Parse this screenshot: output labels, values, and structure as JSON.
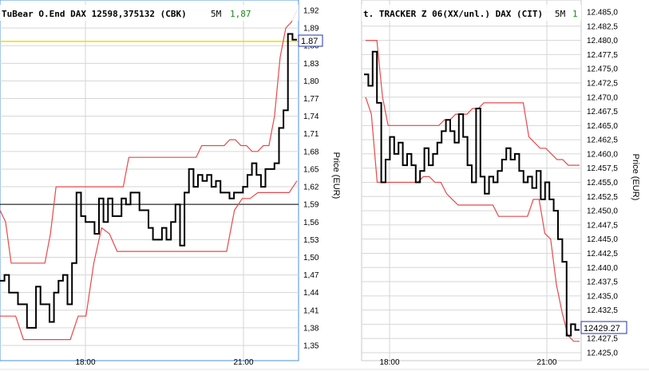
{
  "colors": {
    "price": "#000000",
    "band": "#e8484a",
    "grid": "#d6d6d6",
    "frame": "#4a90d9",
    "highlight": "#e8e000",
    "value_green": "#1a8a1a",
    "lastbox": "#2233aa"
  },
  "chart_data": [
    {
      "type": "line",
      "title": "TuBear O.End DAX 12598,375132 (CBK)",
      "timeframe": "5M",
      "current_value": "1,87",
      "ylabel": "Price (EUR)",
      "xlabel": "",
      "ylim": [
        1.34,
        1.92
      ],
      "ytick_labels": [
        "1,92",
        "1,89",
        "1,86",
        "1,83",
        "1,80",
        "1,77",
        "1,74",
        "1,71",
        "1,68",
        "1,65",
        "1,62",
        "1,59",
        "1,56",
        "1,53",
        "1,50",
        "1,47",
        "1,44",
        "1,41",
        "1,38",
        "1,35"
      ],
      "xtick_labels": [
        "18:00",
        "21:00"
      ],
      "last_value_label": "1.87",
      "horizontal_lines": {
        "yellow": 1.87,
        "black": 1.59
      },
      "series": [
        {
          "values": [
            1.46,
            1.47,
            1.44,
            1.44,
            1.42,
            1.42,
            1.38,
            1.38,
            1.45,
            1.42,
            1.42,
            1.39,
            1.44,
            1.46,
            1.47,
            1.42,
            1.49,
            1.61,
            1.57,
            1.56,
            1.56,
            1.54,
            1.6,
            1.56,
            1.6,
            1.57,
            1.57,
            1.6,
            1.59,
            1.61,
            1.61,
            1.58,
            1.58,
            1.55,
            1.53,
            1.53,
            1.55,
            1.53,
            1.56,
            1.59,
            1.52,
            1.61,
            1.65,
            1.62,
            1.64,
            1.63,
            1.64,
            1.62,
            1.63,
            1.61,
            1.61,
            1.6,
            1.61,
            1.61,
            1.62,
            1.64,
            1.66,
            1.64,
            1.62,
            1.65,
            1.65,
            1.66,
            1.72,
            1.75,
            1.88,
            1.87
          ]
        },
        {
          "values": [
            1.58,
            1.56,
            1.49,
            1.49,
            1.49,
            1.49,
            1.49,
            1.49,
            1.49,
            1.54,
            1.62,
            1.62,
            1.62,
            1.62,
            1.62,
            1.62,
            1.62,
            1.62,
            1.62,
            1.62,
            1.62,
            1.62,
            1.62,
            1.67,
            1.67,
            1.67,
            1.67,
            1.67,
            1.67,
            1.67,
            1.67,
            1.67,
            1.67,
            1.67,
            1.67,
            1.67,
            1.69,
            1.69,
            1.69,
            1.69,
            1.69,
            1.7,
            1.7,
            1.69,
            1.69,
            1.68,
            1.68,
            1.69,
            1.69,
            1.74,
            1.84,
            1.89,
            1.9,
            1.92
          ]
        },
        {
          "values": [
            1.4,
            1.4,
            1.4,
            1.36,
            1.36,
            1.36,
            1.36,
            1.36,
            1.36,
            1.36,
            1.4,
            1.4,
            1.49,
            1.55,
            1.54,
            1.51,
            1.51,
            1.51,
            1.51,
            1.51,
            1.51,
            1.51,
            1.51,
            1.51,
            1.51,
            1.51,
            1.51,
            1.51,
            1.51,
            1.51,
            1.58,
            1.6,
            1.6,
            1.61,
            1.61,
            1.61,
            1.61,
            1.61,
            1.63
          ]
        }
      ]
    },
    {
      "type": "line",
      "title": "t. TRACKER Z 06(XX/unl.) DAX (CIT)",
      "timeframe": "5M",
      "current_value": "1",
      "ylabel": "Price (EUR)",
      "xlabel": "",
      "ylim": [
        12.425,
        12.4865
      ],
      "ytick_labels": [
        "12.485,0",
        "12.482,5",
        "12.480,0",
        "12.477,5",
        "12.475,0",
        "12.472,5",
        "12.470,0",
        "12.467,5",
        "12.465,0",
        "12.462,5",
        "12.460,0",
        "12.457,5",
        "12.455,0",
        "12.452,5",
        "12.450,0",
        "12.447,5",
        "12.445,0",
        "12.442,5",
        "12.440,0",
        "12.437,5",
        "12.435,0",
        "12.432,5",
        "12.430,0",
        "12.427,5",
        "12.425,0"
      ],
      "xtick_labels": [
        "18:00",
        "21:00"
      ],
      "last_value_label": "12429.27",
      "series": [
        {
          "values": [
            12.474,
            12.472,
            12.478,
            12.469,
            12.455,
            12.459,
            12.463,
            12.46,
            12.462,
            12.458,
            12.46,
            12.458,
            12.455,
            12.457,
            12.461,
            12.458,
            12.46,
            12.462,
            12.464,
            12.466,
            12.464,
            12.462,
            12.467,
            12.463,
            12.458,
            12.455,
            12.468,
            12.456,
            12.453,
            12.456,
            12.455,
            12.457,
            12.459,
            12.461,
            12.459,
            12.46,
            12.457,
            12.455,
            12.456,
            12.454,
            12.457,
            12.452,
            12.455,
            12.452,
            12.45,
            12.445,
            12.441,
            12.428,
            12.43,
            12.429
          ]
        },
        {
          "values": [
            12.48,
            12.48,
            12.48,
            12.47,
            12.465,
            12.465,
            12.465,
            12.465,
            12.465,
            12.465,
            12.465,
            12.465,
            12.465,
            12.465,
            12.466,
            12.466,
            12.467,
            12.467,
            12.467,
            12.468,
            12.468,
            12.469,
            12.469,
            12.469,
            12.469,
            12.469,
            12.469,
            12.469,
            12.469,
            12.463,
            12.462,
            12.461,
            12.461,
            12.46,
            12.459,
            12.459,
            12.458,
            12.458,
            12.458
          ]
        },
        {
          "values": [
            12.47,
            12.467,
            12.455,
            12.455,
            12.455,
            12.455,
            12.455,
            12.455,
            12.455,
            12.455,
            12.456,
            12.456,
            12.455,
            12.455,
            12.453,
            12.452,
            12.451,
            12.451,
            12.451,
            12.451,
            12.451,
            12.451,
            12.451,
            12.449,
            12.449,
            12.449,
            12.449,
            12.449,
            12.449,
            12.452,
            12.452,
            12.446,
            12.445,
            12.437,
            12.432,
            12.428,
            12.427,
            12.427
          ]
        }
      ]
    }
  ]
}
